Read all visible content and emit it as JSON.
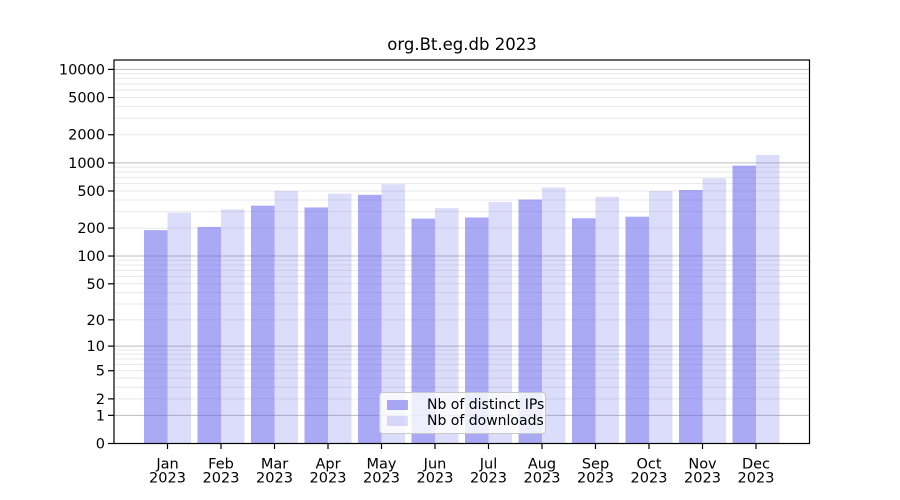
{
  "title": "org.Bt.eg.db 2023",
  "chart_data": {
    "type": "bar",
    "title": "org.Bt.eg.db 2023",
    "x_categories": [
      "Jan",
      "Feb",
      "Mar",
      "Apr",
      "May",
      "Jun",
      "Jul",
      "Aug",
      "Sep",
      "Oct",
      "Nov",
      "Dec"
    ],
    "x_category_year": "2023",
    "series": [
      {
        "name": "Nb of distinct IPs",
        "color": "rgba(102,102,238,0.56)",
        "values": [
          190,
          206,
          348,
          333,
          455,
          253,
          260,
          405,
          255,
          265,
          512,
          935
        ]
      },
      {
        "name": "Nb of downloads",
        "color": "rgba(102,102,238,0.23)",
        "values": [
          293,
          318,
          500,
          468,
          590,
          327,
          380,
          545,
          433,
          500,
          685,
          1215
        ]
      }
    ],
    "y_scale": "log10(value+1)",
    "y_ticks": [
      10000,
      5000,
      2000,
      1000,
      500,
      200,
      100,
      50,
      20,
      10,
      5,
      2,
      1,
      0
    ],
    "ylim": [
      0,
      12600
    ],
    "grid": {
      "major_lines": [
        1,
        10,
        100,
        1000,
        10000
      ],
      "minor_lines": "2..9 per decade",
      "major_color": "#bcbcbc",
      "minor_color": "#e8e8e8"
    },
    "legend_position": "bottom-center"
  },
  "colors": {
    "background": "#ffffff",
    "axis": "#000000",
    "text": "#000000"
  }
}
